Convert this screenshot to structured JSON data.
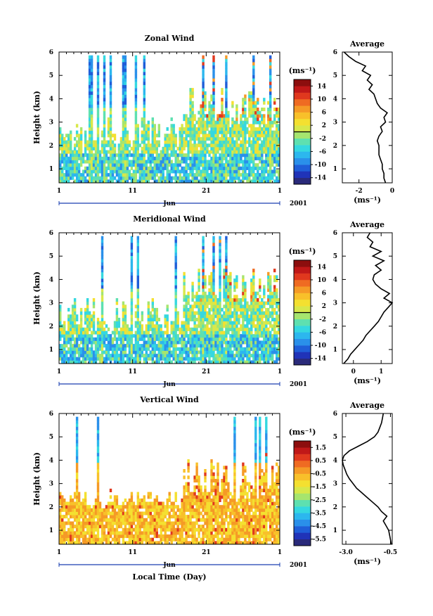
{
  "figure": {
    "xlabel": "Local Time (Day)",
    "month_label": "Jun",
    "year_label": "2001"
  },
  "chart_data": [
    {
      "type": "heatmap",
      "title": "Zonal Wind",
      "ylabel": "Height (km)",
      "xlabel": "Local Time (Day)",
      "x_ticks": [
        "1",
        "11",
        "21",
        "1"
      ],
      "xlim": [
        1,
        31
      ],
      "y_ticks": [
        1,
        2,
        3,
        4,
        5,
        6
      ],
      "ylim": [
        0.4,
        6
      ],
      "colorbar": {
        "unit": "(ms⁻¹)",
        "ticks": [
          14,
          10,
          6,
          2,
          -2,
          -6,
          -10,
          -14
        ],
        "range": [
          -16,
          16
        ]
      },
      "colors": {
        "bands": [
          "#2a2a7a",
          "#2033b8",
          "#1f5ed8",
          "#2a90ea",
          "#2cb7ee",
          "#35d8e0",
          "#5ee0b0",
          "#a6e56e",
          "#d8e84a",
          "#f4e030",
          "#f8c02a",
          "#f59a26",
          "#ef6b22",
          "#e0381e",
          "#c01818",
          "#8c0e0e"
        ]
      },
      "profile": {
        "title": "Average",
        "xlabel": "(ms⁻¹)",
        "x_ticks": [
          -2,
          0
        ],
        "xlim": [
          -3,
          0
        ],
        "height_km": [
          0.4,
          0.6,
          0.8,
          1.0,
          1.2,
          1.4,
          1.6,
          1.8,
          2.0,
          2.2,
          2.4,
          2.6,
          2.8,
          3.0,
          3.2,
          3.4,
          3.6,
          3.8,
          4.0,
          4.2,
          4.4,
          4.6,
          4.8,
          5.0,
          5.2,
          5.4,
          5.6,
          5.8,
          6.0
        ],
        "value": [
          -0.4,
          -0.5,
          -0.5,
          -0.6,
          -0.6,
          -0.7,
          -0.8,
          -0.8,
          -0.8,
          -0.9,
          -0.8,
          -0.6,
          -0.7,
          -0.4,
          -0.5,
          -0.3,
          -0.7,
          -0.9,
          -1.0,
          -1.1,
          -1.4,
          -1.2,
          -1.5,
          -1.3,
          -1.8,
          -1.6,
          -2.2,
          -2.6,
          -2.9
        ]
      }
    },
    {
      "type": "heatmap",
      "title": "Meridional Wind",
      "ylabel": "Height (km)",
      "xlabel": "Local Time (Day)",
      "x_ticks": [
        "1",
        "11",
        "21",
        "1"
      ],
      "xlim": [
        1,
        31
      ],
      "y_ticks": [
        1,
        2,
        3,
        4,
        5,
        6
      ],
      "ylim": [
        0.4,
        6
      ],
      "colorbar": {
        "unit": "(ms⁻¹)",
        "ticks": [
          14,
          10,
          6,
          2,
          -2,
          -6,
          -10,
          -14
        ],
        "range": [
          -16,
          16
        ]
      },
      "colors": {
        "bands": [
          "#2a2a7a",
          "#2033b8",
          "#1f5ed8",
          "#2a90ea",
          "#2cb7ee",
          "#35d8e0",
          "#5ee0b0",
          "#a6e56e",
          "#d8e84a",
          "#f4e030",
          "#f8c02a",
          "#f59a26",
          "#ef6b22",
          "#e0381e",
          "#c01818",
          "#8c0e0e"
        ]
      },
      "profile": {
        "title": "Average",
        "xlabel": "(ms⁻¹)",
        "x_ticks": [
          0,
          1
        ],
        "xlim": [
          -0.4,
          1.4
        ],
        "height_km": [
          0.4,
          0.6,
          0.8,
          1.0,
          1.2,
          1.4,
          1.6,
          1.8,
          2.0,
          2.2,
          2.4,
          2.6,
          2.8,
          3.0,
          3.2,
          3.4,
          3.6,
          3.8,
          4.0,
          4.2,
          4.4,
          4.6,
          4.8,
          5.0,
          5.2,
          5.4,
          5.6,
          5.8,
          6.0
        ],
        "value": [
          -0.35,
          -0.2,
          -0.1,
          0.05,
          0.2,
          0.35,
          0.45,
          0.6,
          0.75,
          0.9,
          1.0,
          1.1,
          1.25,
          1.4,
          1.1,
          1.3,
          1.0,
          0.8,
          0.7,
          0.75,
          1.0,
          0.8,
          1.1,
          0.7,
          1.0,
          0.6,
          0.7,
          0.5,
          0.6
        ]
      }
    },
    {
      "type": "heatmap",
      "title": "Vertical Wind",
      "ylabel": "Height (km)",
      "xlabel": "Local Time (Day)",
      "x_ticks": [
        "1",
        "11",
        "21",
        "1"
      ],
      "xlim": [
        1,
        31
      ],
      "y_ticks": [
        1,
        2,
        3,
        4,
        5,
        6
      ],
      "ylim": [
        0.4,
        6
      ],
      "colorbar": {
        "unit": "(ms⁻¹)",
        "ticks": [
          1.5,
          0.5,
          -0.5,
          -1.5,
          -2.5,
          -3.5,
          -4.5,
          -5.5
        ],
        "range": [
          -6,
          2
        ]
      },
      "colors": {
        "bands": [
          "#2a2a7a",
          "#2033b8",
          "#1f5ed8",
          "#2a90ea",
          "#2cb7ee",
          "#35d8e0",
          "#5ee0b0",
          "#a6e56e",
          "#d8e84a",
          "#f4e030",
          "#f8c02a",
          "#f59a26",
          "#ef6b22",
          "#e0381e",
          "#c01818",
          "#8c0e0e"
        ]
      },
      "profile": {
        "title": "Average",
        "xlabel": "(ms⁻¹)",
        "x_ticks": [
          -3.0,
          -0.5
        ],
        "xlim": [
          -3.2,
          -0.4
        ],
        "height_km": [
          0.4,
          0.6,
          0.8,
          1.0,
          1.2,
          1.4,
          1.6,
          1.8,
          2.0,
          2.2,
          2.4,
          2.6,
          2.8,
          3.0,
          3.2,
          3.4,
          3.6,
          3.8,
          4.0,
          4.2,
          4.4,
          4.6,
          4.8,
          5.0,
          5.2,
          5.4,
          5.6,
          5.8,
          6.0
        ],
        "value": [
          -0.45,
          -0.5,
          -0.55,
          -0.6,
          -0.75,
          -0.9,
          -0.7,
          -1.0,
          -1.2,
          -1.5,
          -1.8,
          -2.1,
          -2.4,
          -2.6,
          -2.8,
          -2.95,
          -3.05,
          -3.15,
          -3.2,
          -3.1,
          -2.8,
          -2.3,
          -1.8,
          -1.4,
          -1.2,
          -1.1,
          -1.0,
          -0.95,
          -0.9
        ]
      }
    }
  ]
}
